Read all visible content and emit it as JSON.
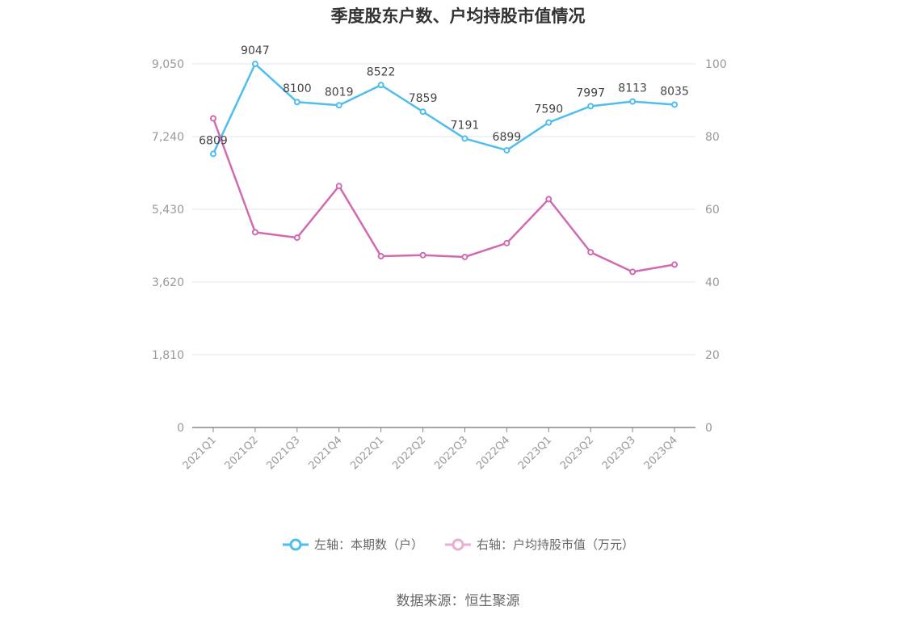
{
  "chart_data": {
    "type": "line",
    "title": "季度股东户数、户均持股市值情况",
    "categories": [
      "2021Q1",
      "2021Q2",
      "2021Q3",
      "2021Q4",
      "2022Q1",
      "2022Q2",
      "2022Q3",
      "2022Q4",
      "2023Q1",
      "2023Q2",
      "2023Q3",
      "2023Q4"
    ],
    "left_axis": {
      "ylim": [
        0,
        9050
      ],
      "ticks": [
        "0",
        "1,810",
        "3,620",
        "5,430",
        "7,240",
        "9,050"
      ]
    },
    "right_axis": {
      "ylim": [
        0,
        100
      ],
      "ticks": [
        "0",
        "20",
        "40",
        "60",
        "80",
        "100"
      ]
    },
    "series": [
      {
        "name": "左轴：本期数（户）",
        "axis": "left",
        "color": "#4fbdee",
        "values": [
          6809,
          9047,
          8100,
          8019,
          8522,
          7859,
          7191,
          6899,
          7590,
          7997,
          8113,
          8035
        ],
        "labels_shown": true
      },
      {
        "name": "右轴：户均持股市值（万元）",
        "axis": "right",
        "color": "#d16bb0",
        "legend_color": "#eaaed3",
        "values": [
          85.0,
          53.7,
          52.2,
          66.4,
          47.1,
          47.4,
          46.9,
          50.7,
          62.8,
          48.2,
          42.8,
          44.8
        ],
        "labels_shown": false
      }
    ],
    "grid": true,
    "legend": "bottom-center",
    "source": "数据来源：恒生聚源"
  }
}
